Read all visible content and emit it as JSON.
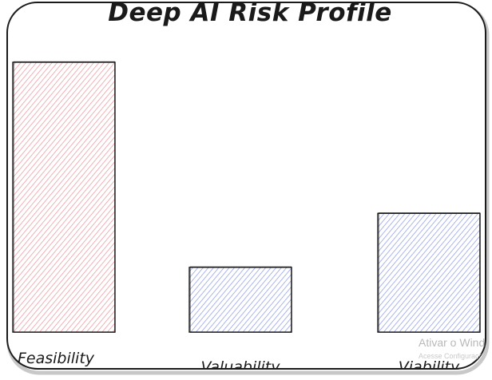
{
  "chart_data": {
    "type": "bar",
    "title": "Deep AI Risk Profile",
    "categories": [
      "Feasibility",
      "Valuability",
      "Viability"
    ],
    "values": [
      100,
      24,
      44
    ],
    "ylim": [
      0,
      100
    ],
    "grid": false,
    "legend": "none",
    "bar_colors": [
      "#e8888e",
      "#7d8ee6",
      "#7d8ee6"
    ]
  },
  "watermark": {
    "line1": "Ativar o Windows",
    "line2": "Acesse Configurações para ativar o Windows."
  },
  "colors": {
    "stroke": "#1a1a1a",
    "background": "#ffffff",
    "watermark": "#b9b9b9"
  }
}
